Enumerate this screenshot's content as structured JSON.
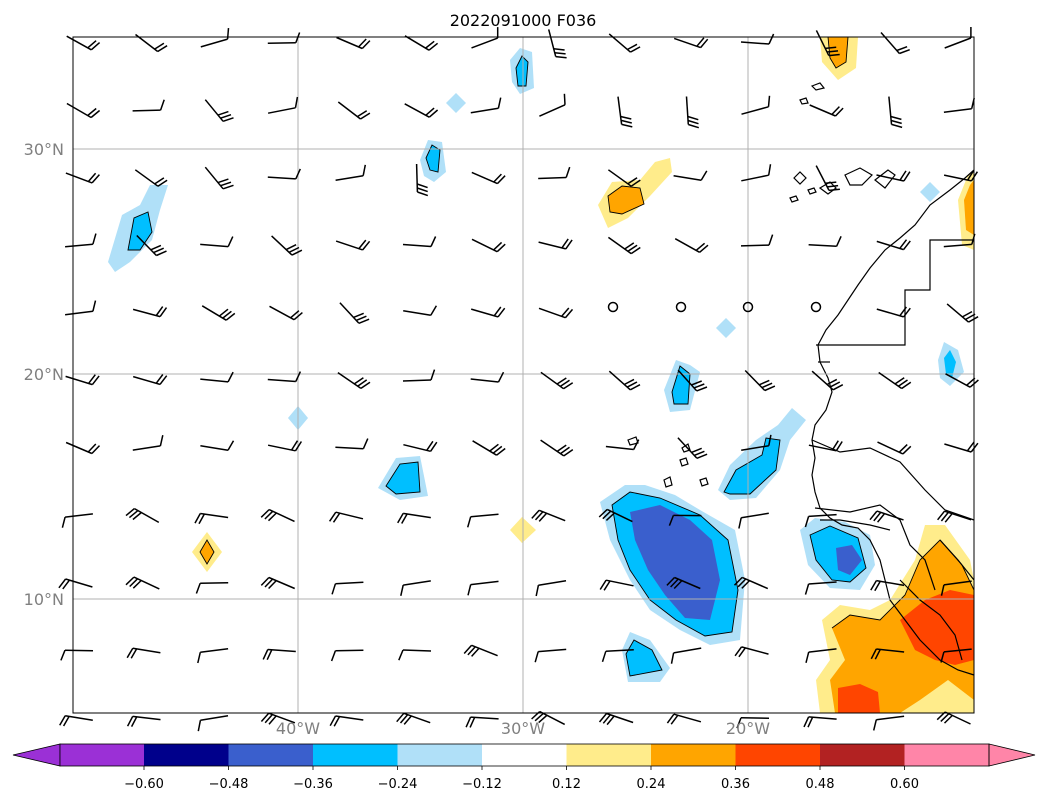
{
  "title": "2022091000 F036",
  "map": {
    "lat_labels": [
      "30°N",
      "20°N",
      "10°N"
    ],
    "lon_labels": [
      "40°W",
      "30°W",
      "20°W"
    ],
    "lat_range": [
      5,
      35
    ],
    "lon_range": [
      -50,
      -10
    ],
    "gridlines": true
  },
  "colorbar": {
    "tick_labels": [
      "−0.60",
      "−0.48",
      "−0.36",
      "−0.24",
      "−0.12",
      "0.12",
      "0.24",
      "0.36",
      "0.48",
      "0.60"
    ],
    "colors": [
      "#9b30d6",
      "#00008b",
      "#3a5fcd",
      "#00bfff",
      "#b0e0f8",
      "#ffffff",
      "#ffec8b",
      "#ffa500",
      "#ff4500",
      "#b22222",
      "#ff85a8"
    ],
    "extend": "both"
  },
  "colors": {
    "gridline": "#b0b0b0",
    "coast": "#000000",
    "label": "#808080"
  }
}
